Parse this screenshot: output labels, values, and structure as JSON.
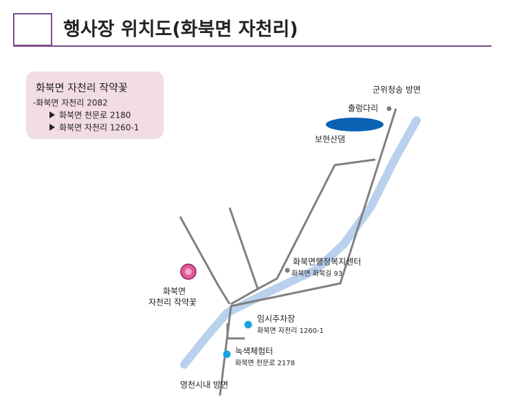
{
  "header": {
    "title": "행사장 위치도(화북면 자천리)"
  },
  "info_box": {
    "title": "화북면 자천리 작약꽃",
    "lines": [
      "-화북면 자천리 2082",
      "화북면 천문로 2180",
      "화북면 자천리 1260-1"
    ]
  },
  "map": {
    "labels": [
      {
        "name": "군위청송 방면"
      },
      {
        "name": "출렁다리"
      },
      {
        "name": "보현산댐"
      },
      {
        "name": "화북면행정복지센터",
        "address": "화북면 화북길 93"
      },
      {
        "name": "화북면",
        "address": "자천리 작약꽃"
      },
      {
        "name": "임시주차장",
        "address": "화북면 자천리 1260-1"
      },
      {
        "name": "녹색체험터",
        "address": "화북면 천문로 2178"
      },
      {
        "name": "영천시내 방면"
      }
    ]
  }
}
